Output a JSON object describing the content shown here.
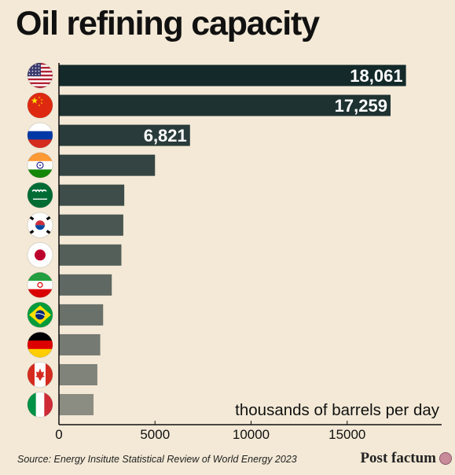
{
  "header": {
    "title": "Oil refining capacity"
  },
  "footer": {
    "source": "Source: Energy Insitute Statistical Review of World Energy 2023",
    "brand": "Post factum",
    "brand_logo": "brand-icon"
  },
  "chart_data": {
    "type": "bar",
    "orientation": "horizontal",
    "categories": [
      "United States",
      "China",
      "Russia",
      "India",
      "Saudi Arabia",
      "South Korea",
      "Japan",
      "Iran",
      "Brazil",
      "Germany",
      "Canada",
      "Italy"
    ],
    "category_icons": [
      "flag-usa-icon",
      "flag-china-icon",
      "flag-russia-icon",
      "flag-india-icon",
      "flag-saudi-arabia-icon",
      "flag-south-korea-icon",
      "flag-japan-icon",
      "flag-iran-icon",
      "flag-brazil-icon",
      "flag-germany-icon",
      "flag-canada-icon",
      "flag-italy-icon"
    ],
    "values": [
      18061,
      17259,
      6821,
      5000,
      3400,
      3350,
      3250,
      2750,
      2300,
      2150,
      2000,
      1800
    ],
    "data_labels": [
      "18,061",
      "17,259",
      "6,821",
      "",
      "",
      "",
      "",
      "",
      "",
      "",
      "",
      ""
    ],
    "unit_label": "thousands of barrels per day",
    "xticks": [
      0,
      5000,
      10000,
      15000
    ],
    "xtick_labels": [
      "0",
      "5000",
      "10000",
      "15000"
    ],
    "xlim": [
      0,
      20000
    ],
    "grid": false,
    "colors": {
      "darkest": "#13292a",
      "lightest": "#8b8c82",
      "label_text": "#ffffff",
      "axis": "#111111"
    }
  }
}
